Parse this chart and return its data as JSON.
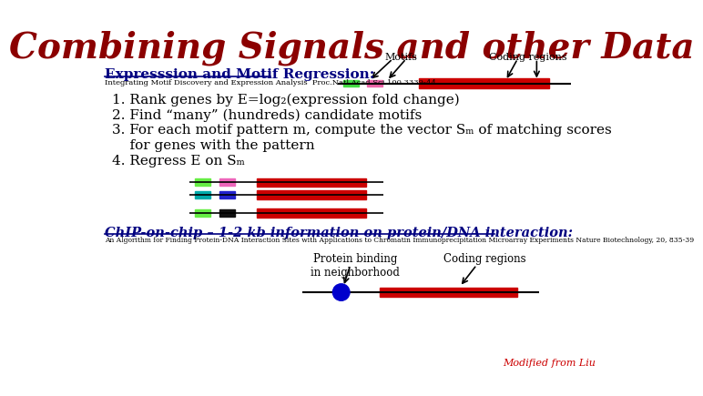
{
  "title": "Combining Signals and other Data",
  "title_color": "#8B0000",
  "title_fontsize": 28,
  "bg_color": "#FFFFFF",
  "section1_heading": "Expresssion and Motif Regression:",
  "section1_ref": "Integrating Motif Discovery and Expression Analysis  Proc.Natl.Acad.Sci 100.3339-44",
  "text_lines": [
    "1. Rank genes by E=log₂(expression fold change)",
    "2. Find “many” (hundreds) candidate motifs",
    "3. For each motif pattern m, compute the vector Sₘ of matching scores",
    "    for genes with the pattern",
    "4. Regress E on Sₘ"
  ],
  "motifs_label": "Motifs",
  "coding_regions_label": "Coding regions",
  "section2_heading": "ChIP-on-chip – 1-2 kb information on protein/DNA interaction:",
  "section2_ref": "An Algorithm for Finding Protein-DNA Interaction Sites with Applications to Chromatin Immunoprecipitation Microarray Experiments Nature Biotechnology, 20, 835-39",
  "protein_label": "Protein binding\nin neighborhood",
  "coding_regions2_label": "Coding regions",
  "modified_label": "Modified from Liu"
}
